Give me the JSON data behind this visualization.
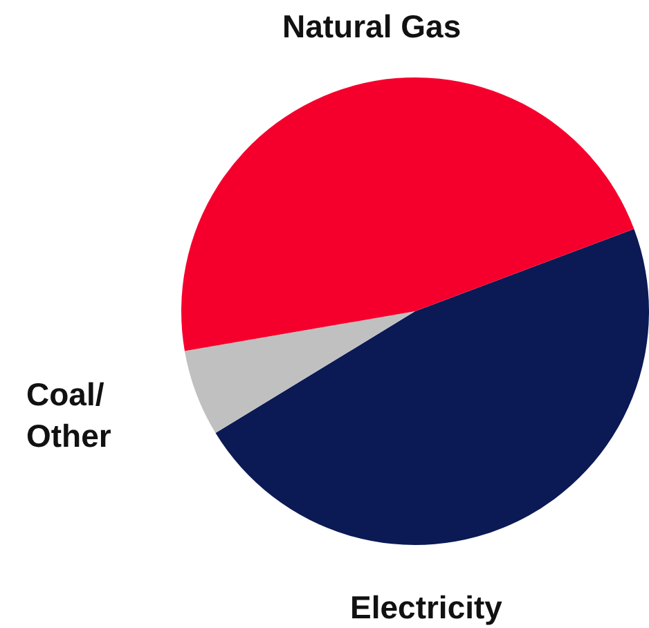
{
  "chart_data": {
    "type": "pie",
    "categories": [
      "Electricity",
      "Coal/\nOther",
      "Natural Gas"
    ],
    "values": [
      47,
      6,
      47
    ],
    "colors": [
      "#0b1a55",
      "#c0c0c0",
      "#f5002d"
    ]
  }
}
